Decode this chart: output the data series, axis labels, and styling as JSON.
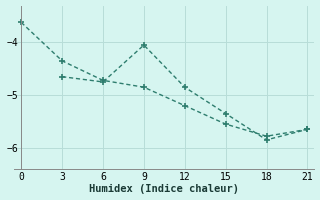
{
  "line1_x": [
    0,
    3,
    6,
    9,
    12,
    15,
    18,
    21
  ],
  "line1_y": [
    -3.62,
    -4.35,
    -4.72,
    -4.85,
    -5.2,
    -5.55,
    -5.78,
    -5.65
  ],
  "line2_x": [
    3,
    6,
    9,
    12,
    15,
    18,
    21
  ],
  "line2_y": [
    -4.65,
    -4.75,
    -4.05,
    -4.85,
    -5.35,
    -5.85,
    -5.65
  ],
  "color": "#2e7d6e",
  "xlabel": "Humidex (Indice chaleur)",
  "xlim": [
    -0.5,
    21.5
  ],
  "ylim": [
    -6.4,
    -3.3
  ],
  "yticks": [
    -6,
    -5,
    -4
  ],
  "xticks": [
    0,
    3,
    6,
    9,
    12,
    15,
    18,
    21
  ],
  "bg_color": "#d6f5f0",
  "grid_color": "#b8ddd8",
  "figsize": [
    3.2,
    2.0
  ],
  "dpi": 100
}
